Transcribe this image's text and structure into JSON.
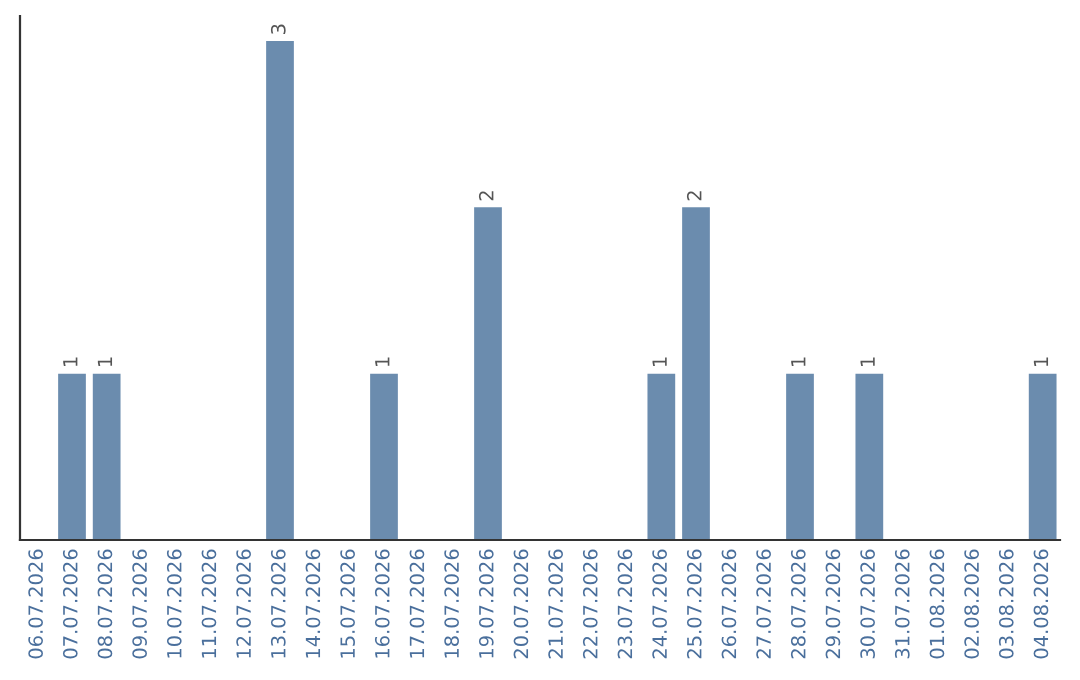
{
  "chart_data": {
    "type": "bar",
    "categories": [
      "06.07.2026",
      "07.07.2026",
      "08.07.2026",
      "09.07.2026",
      "10.07.2026",
      "11.07.2026",
      "12.07.2026",
      "13.07.2026",
      "14.07.2026",
      "15.07.2026",
      "16.07.2026",
      "17.07.2026",
      "18.07.2026",
      "19.07.2026",
      "20.07.2026",
      "21.07.2026",
      "22.07.2026",
      "23.07.2026",
      "24.07.2026",
      "25.07.2026",
      "26.07.2026",
      "27.07.2026",
      "28.07.2026",
      "29.07.2026",
      "30.07.2026",
      "31.07.2026",
      "01.08.2026",
      "02.08.2026",
      "03.08.2026",
      "04.08.2026"
    ],
    "values": [
      0,
      1,
      1,
      0,
      0,
      0,
      0,
      3,
      0,
      0,
      1,
      0,
      0,
      2,
      0,
      0,
      0,
      0,
      1,
      2,
      0,
      0,
      1,
      0,
      1,
      0,
      0,
      0,
      0,
      1
    ],
    "value_labels": [
      null,
      "1",
      "1",
      null,
      null,
      null,
      null,
      "3",
      null,
      null,
      "1",
      null,
      null,
      "2",
      null,
      null,
      null,
      null,
      "1",
      "2",
      null,
      null,
      "1",
      null,
      "1",
      null,
      null,
      null,
      null,
      "1"
    ],
    "color": "#6b8cae",
    "grid": false,
    "legend": false
  }
}
